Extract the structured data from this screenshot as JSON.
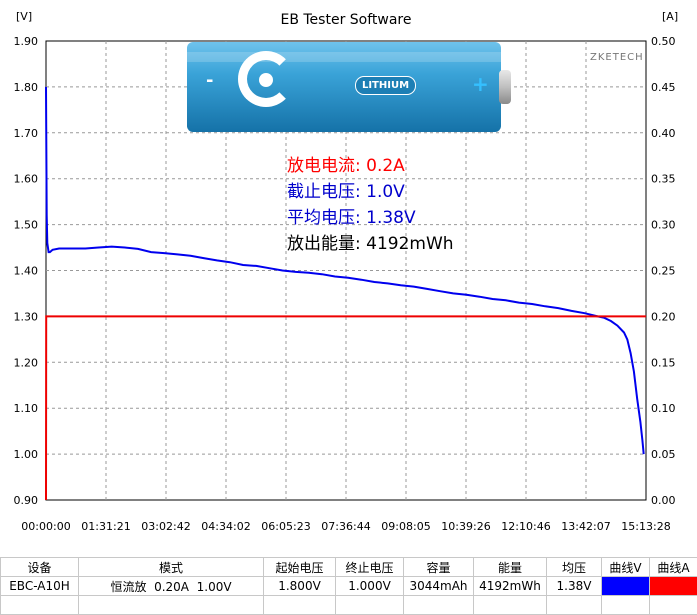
{
  "window": {
    "title": "EB Tester Software",
    "watermark": "ZKETECH"
  },
  "battery_image": {
    "label": "LITHIUM",
    "plus_sign": "+",
    "minus_sign": "-"
  },
  "overlay": {
    "discharge_current_label": "放电电流:",
    "discharge_current_value": "0.2A",
    "cutoff_voltage_label": "截止电压:",
    "cutoff_voltage_value": "1.0V",
    "avg_voltage_label": "平均电压:",
    "avg_voltage_value": "1.38V",
    "energy_label": "放出能量:",
    "energy_value": "4192mWh",
    "colors": {
      "current": "#ff0000",
      "cutoff": "#0000cc",
      "avg": "#0000cc",
      "energy": "#000000"
    }
  },
  "chart_data": {
    "type": "line",
    "left_axis_unit": "[V]",
    "right_axis_unit": "[A]",
    "y_left_ticks": [
      "1.90",
      "1.80",
      "1.70",
      "1.60",
      "1.50",
      "1.40",
      "1.30",
      "1.20",
      "1.10",
      "1.00",
      "0.90"
    ],
    "y_right_ticks": [
      "0.50",
      "0.45",
      "0.40",
      "0.35",
      "0.30",
      "0.25",
      "0.20",
      "0.15",
      "0.10",
      "0.05",
      "0.00"
    ],
    "x_ticks": [
      "00:00:00",
      "01:31:21",
      "03:02:42",
      "04:34:02",
      "06:05:23",
      "07:36:44",
      "09:08:05",
      "10:39:26",
      "12:10:46",
      "13:42:07",
      "15:13:28"
    ],
    "ylim_left": [
      0.9,
      1.9
    ],
    "ylim_right": [
      0.0,
      0.5
    ],
    "xlim_minutes": [
      0,
      913.47
    ],
    "grid": true,
    "series": [
      {
        "axis": "left",
        "color": "#0000ee",
        "x_minutes": [
          0,
          1,
          2,
          4,
          6,
          10,
          20,
          40,
          60,
          80,
          100,
          120,
          140,
          160,
          180,
          200,
          220,
          240,
          260,
          280,
          300,
          320,
          340,
          360,
          380,
          400,
          420,
          440,
          460,
          480,
          500,
          520,
          540,
          560,
          580,
          600,
          620,
          640,
          660,
          680,
          700,
          720,
          740,
          760,
          780,
          800,
          820,
          840,
          850,
          860,
          870,
          880,
          885,
          890,
          895,
          900,
          905,
          908,
          910
        ],
        "values": [
          1.8,
          1.52,
          1.46,
          1.44,
          1.44,
          1.445,
          1.448,
          1.448,
          1.448,
          1.45,
          1.452,
          1.45,
          1.447,
          1.44,
          1.438,
          1.435,
          1.432,
          1.427,
          1.422,
          1.418,
          1.412,
          1.41,
          1.405,
          1.4,
          1.397,
          1.395,
          1.392,
          1.387,
          1.384,
          1.38,
          1.375,
          1.372,
          1.368,
          1.365,
          1.36,
          1.355,
          1.35,
          1.347,
          1.343,
          1.338,
          1.335,
          1.33,
          1.327,
          1.322,
          1.318,
          1.312,
          1.307,
          1.3,
          1.297,
          1.29,
          1.28,
          1.265,
          1.25,
          1.22,
          1.18,
          1.12,
          1.07,
          1.03,
          1.0
        ]
      },
      {
        "axis": "right",
        "color": "#ee0000",
        "x_minutes": [
          0,
          0.3,
          913.47
        ],
        "values": [
          0.0,
          0.2,
          0.2
        ]
      }
    ]
  },
  "table": {
    "headers": [
      "设备",
      "模式",
      "起始电压",
      "终止电压",
      "容量",
      "能量",
      "均压",
      "曲线V",
      "曲线A"
    ],
    "row": {
      "device": "EBC-A10H",
      "mode": "恒流放  0.20A  1.00V",
      "start_voltage": "1.800V",
      "end_voltage": "1.000V",
      "capacity": "3044mAh",
      "energy": "4192mWh",
      "avg_voltage": "1.38V"
    },
    "curve_colors": {
      "v": "#0000ff",
      "a": "#ff0000"
    }
  }
}
